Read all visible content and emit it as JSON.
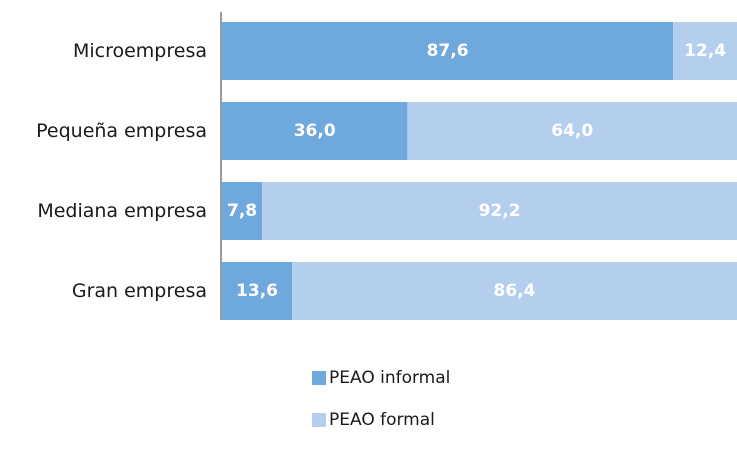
{
  "chart_data": {
    "type": "bar",
    "orientation": "horizontal",
    "stacked": true,
    "categories": [
      "Microempresa",
      "Pequeña empresa",
      "Mediana empresa",
      "Gran empresa"
    ],
    "series": [
      {
        "name": "PEAO informal",
        "values": [
          87.6,
          36.0,
          7.8,
          13.6
        ],
        "labels": [
          "87,6",
          "36,0",
          "7,8",
          "13,6"
        ],
        "color": "#6fa8dc"
      },
      {
        "name": "PEAO formal",
        "values": [
          12.4,
          64.0,
          92.2,
          86.4
        ],
        "labels": [
          "12,4",
          "64,0",
          "92,2",
          "86,4"
        ],
        "color": "#b4cfee"
      }
    ],
    "xlim": [
      0,
      100
    ],
    "grid": false,
    "legend_position": "bottom"
  }
}
